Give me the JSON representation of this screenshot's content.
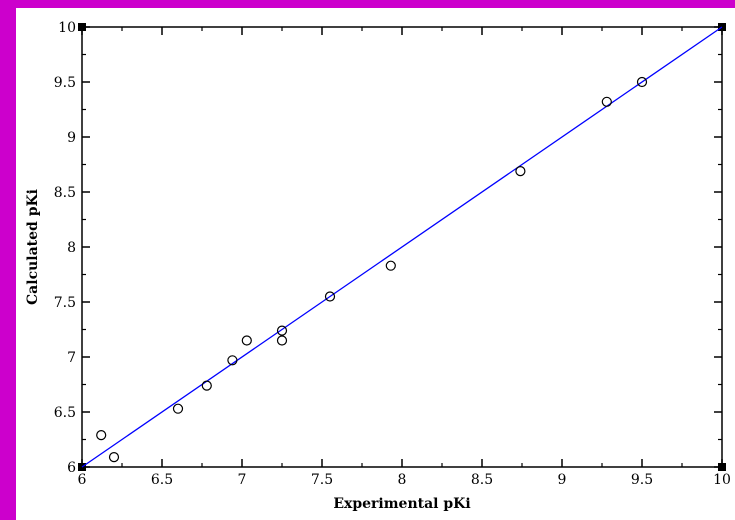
{
  "colors": {
    "background": "#cc00cc",
    "plot_background": "#ffffff",
    "fit_line": "#0000ff",
    "markers": "#000000"
  },
  "chart_data": {
    "type": "scatter",
    "title": "",
    "xlabel": "Experimental pKi",
    "ylabel": "Calculated pKi",
    "xlim": [
      6,
      10
    ],
    "ylim": [
      6,
      10
    ],
    "x_ticks": [
      "6",
      "6.5",
      "7",
      "7.5",
      "8",
      "8.5",
      "9",
      "9.5",
      "10"
    ],
    "y_ticks": [
      "6",
      "6.5",
      "7",
      "7.5",
      "8",
      "8.5",
      "9",
      "9.5",
      "10"
    ],
    "grid": false,
    "marker": "open-circle",
    "series": [
      {
        "x": [
          6.12,
          6.2,
          6.6,
          6.78,
          6.94,
          7.03,
          7.25,
          7.25,
          7.55,
          7.93,
          8.74,
          9.28,
          9.5
        ],
        "y": [
          6.29,
          6.09,
          6.53,
          6.74,
          6.97,
          7.15,
          7.24,
          7.15,
          7.55,
          7.83,
          8.69,
          9.32,
          9.5
        ]
      }
    ],
    "fit_line": {
      "x": [
        6,
        10
      ],
      "y": [
        6,
        10
      ]
    }
  }
}
